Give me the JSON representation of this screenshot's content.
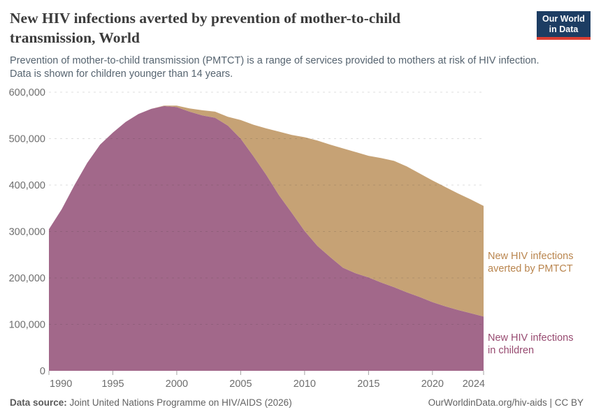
{
  "header": {
    "title_line1": "New HIV infections averted by prevention of mother-to-child",
    "title_line2": "transmission, World",
    "subtitle_line1": "Prevention of mother-to-child transmission (PMTCT) is a range of services provided to mothers at risk of HIV infection.",
    "subtitle_line2": "Data is shown for children younger than 14 years.",
    "logo": {
      "line1": "Our World",
      "line2": "in Data",
      "bg_color": "#1d3d63",
      "bar_color": "#dc3e32",
      "text_color": "#ffffff"
    }
  },
  "chart_data": {
    "type": "area",
    "stacked": true,
    "title": "New HIV infections averted by prevention of mother-to-child transmission, World",
    "xlabel": "",
    "ylabel": "",
    "grid": "horizontal-dashed",
    "legend_position": "right-of-plot",
    "xlim": [
      1990,
      2024
    ],
    "ylim": [
      0,
      600000
    ],
    "x": [
      1990,
      1991,
      1992,
      1993,
      1994,
      1995,
      1996,
      1997,
      1998,
      1999,
      2000,
      2001,
      2002,
      2003,
      2004,
      2005,
      2006,
      2007,
      2008,
      2009,
      2010,
      2011,
      2012,
      2013,
      2014,
      2015,
      2016,
      2017,
      2018,
      2019,
      2020,
      2021,
      2022,
      2023,
      2024
    ],
    "series": [
      {
        "name": "New HIV infections in children",
        "label_line1": "New HIV infections",
        "label_line2": "in children",
        "color": "#a2688a",
        "label_color": "#974a70",
        "values": [
          305000,
          348000,
          400000,
          448000,
          487000,
          513000,
          536000,
          553000,
          564000,
          570000,
          568000,
          558000,
          550000,
          545000,
          528000,
          500000,
          462000,
          422000,
          378000,
          340000,
          301000,
          269000,
          245000,
          222000,
          210000,
          201000,
          190000,
          180000,
          169000,
          159000,
          148000,
          139000,
          131000,
          124000,
          117000
        ]
      },
      {
        "name": "New HIV infections averted by PMTCT",
        "label_line1": "New HIV infections",
        "label_line2": "averted by PMTCT",
        "color": "#c6a275",
        "label_color": "#b9854e",
        "values": [
          0,
          0,
          0,
          0,
          0,
          0,
          0,
          0,
          0,
          1000,
          3000,
          7000,
          11000,
          13000,
          19000,
          40000,
          68000,
          100000,
          137000,
          168000,
          202000,
          227000,
          242000,
          257000,
          261000,
          262000,
          268000,
          272000,
          271000,
          266000,
          262000,
          257000,
          251000,
          245000,
          238000
        ]
      }
    ],
    "y_ticks": [
      {
        "value": 0,
        "label": "0"
      },
      {
        "value": 100000,
        "label": "100,000"
      },
      {
        "value": 200000,
        "label": "200,000"
      },
      {
        "value": 300000,
        "label": "300,000"
      },
      {
        "value": 400000,
        "label": "400,000"
      },
      {
        "value": 500000,
        "label": "500,000"
      },
      {
        "value": 600000,
        "label": "600,000"
      }
    ],
    "x_ticks": [
      {
        "value": 1990,
        "label": "1990"
      },
      {
        "value": 1995,
        "label": "1995"
      },
      {
        "value": 2000,
        "label": "2000"
      },
      {
        "value": 2005,
        "label": "2005"
      },
      {
        "value": 2010,
        "label": "2010"
      },
      {
        "value": 2015,
        "label": "2015"
      },
      {
        "value": 2020,
        "label": "2020"
      },
      {
        "value": 2024,
        "label": "2024"
      }
    ]
  },
  "footer": {
    "source_label": "Data source:",
    "source_text": "Joint United Nations Programme on HIV/AIDS (2026)",
    "right_text": "OurWorldinData.org/hiv-aids | CC BY"
  }
}
